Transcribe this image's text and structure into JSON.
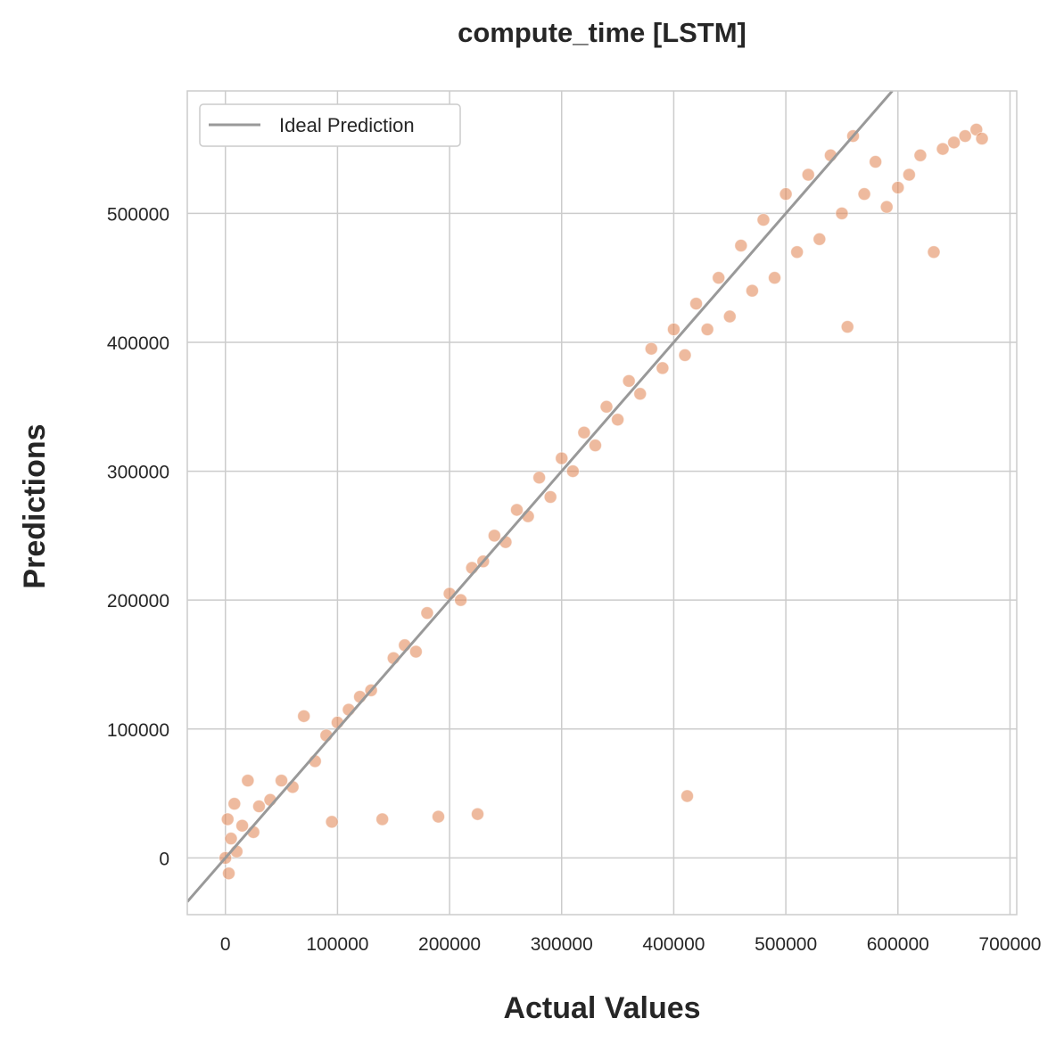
{
  "chart_data": {
    "type": "scatter",
    "title": "compute_time [LSTM]",
    "xlabel": "Actual Values",
    "ylabel": "Predictions",
    "xlim": [
      -34000,
      706000
    ],
    "ylim": [
      -44000,
      595000
    ],
    "xticks": [
      0,
      100000,
      200000,
      300000,
      400000,
      500000,
      600000,
      700000
    ],
    "yticks": [
      0,
      100000,
      200000,
      300000,
      400000,
      500000
    ],
    "xtick_labels": [
      "0",
      "100000",
      "200000",
      "300000",
      "400000",
      "500000",
      "600000",
      "700000"
    ],
    "ytick_labels": [
      "0",
      "100000",
      "200000",
      "300000",
      "400000",
      "500000"
    ],
    "grid": true,
    "legend": {
      "position": "top-left",
      "entries": [
        "Ideal Prediction"
      ]
    },
    "colors": {
      "points": "#e0814f",
      "ideal_line": "#999999",
      "grid": "#cccccc",
      "frame": "#cccccc"
    },
    "series": [
      {
        "kind": "scatter",
        "alpha": 0.12,
        "points": [
          [
            0,
            0
          ],
          [
            2000,
            30000
          ],
          [
            3000,
            -12000
          ],
          [
            5000,
            15000
          ],
          [
            8000,
            42000
          ],
          [
            10000,
            5000
          ],
          [
            15000,
            25000
          ],
          [
            20000,
            60000
          ],
          [
            25000,
            20000
          ],
          [
            30000,
            40000
          ],
          [
            40000,
            45000
          ],
          [
            50000,
            60000
          ],
          [
            60000,
            55000
          ],
          [
            70000,
            110000
          ],
          [
            80000,
            75000
          ],
          [
            90000,
            95000
          ],
          [
            95000,
            28000
          ],
          [
            100000,
            105000
          ],
          [
            110000,
            115000
          ],
          [
            120000,
            125000
          ],
          [
            130000,
            130000
          ],
          [
            140000,
            30000
          ],
          [
            150000,
            155000
          ],
          [
            160000,
            165000
          ],
          [
            170000,
            160000
          ],
          [
            180000,
            190000
          ],
          [
            190000,
            32000
          ],
          [
            200000,
            205000
          ],
          [
            210000,
            200000
          ],
          [
            220000,
            225000
          ],
          [
            225000,
            34000
          ],
          [
            230000,
            230000
          ],
          [
            240000,
            250000
          ],
          [
            250000,
            245000
          ],
          [
            260000,
            270000
          ],
          [
            270000,
            265000
          ],
          [
            280000,
            295000
          ],
          [
            290000,
            280000
          ],
          [
            300000,
            310000
          ],
          [
            310000,
            300000
          ],
          [
            320000,
            330000
          ],
          [
            330000,
            320000
          ],
          [
            340000,
            350000
          ],
          [
            350000,
            340000
          ],
          [
            360000,
            370000
          ],
          [
            370000,
            360000
          ],
          [
            380000,
            395000
          ],
          [
            390000,
            380000
          ],
          [
            400000,
            410000
          ],
          [
            410000,
            390000
          ],
          [
            412000,
            48000
          ],
          [
            420000,
            430000
          ],
          [
            430000,
            410000
          ],
          [
            440000,
            450000
          ],
          [
            450000,
            420000
          ],
          [
            460000,
            475000
          ],
          [
            470000,
            440000
          ],
          [
            480000,
            495000
          ],
          [
            490000,
            450000
          ],
          [
            500000,
            515000
          ],
          [
            510000,
            470000
          ],
          [
            520000,
            530000
          ],
          [
            530000,
            480000
          ],
          [
            540000,
            545000
          ],
          [
            550000,
            500000
          ],
          [
            555000,
            412000
          ],
          [
            560000,
            560000
          ],
          [
            570000,
            515000
          ],
          [
            580000,
            540000
          ],
          [
            590000,
            505000
          ],
          [
            600000,
            520000
          ],
          [
            610000,
            530000
          ],
          [
            620000,
            545000
          ],
          [
            632000,
            470000
          ],
          [
            640000,
            550000
          ],
          [
            650000,
            555000
          ],
          [
            660000,
            560000
          ],
          [
            670000,
            565000
          ],
          [
            675000,
            558000
          ]
        ]
      },
      {
        "kind": "line",
        "name": "Ideal Prediction",
        "x": [
          -34000,
          595000
        ],
        "y": [
          -34000,
          595000
        ]
      }
    ]
  }
}
